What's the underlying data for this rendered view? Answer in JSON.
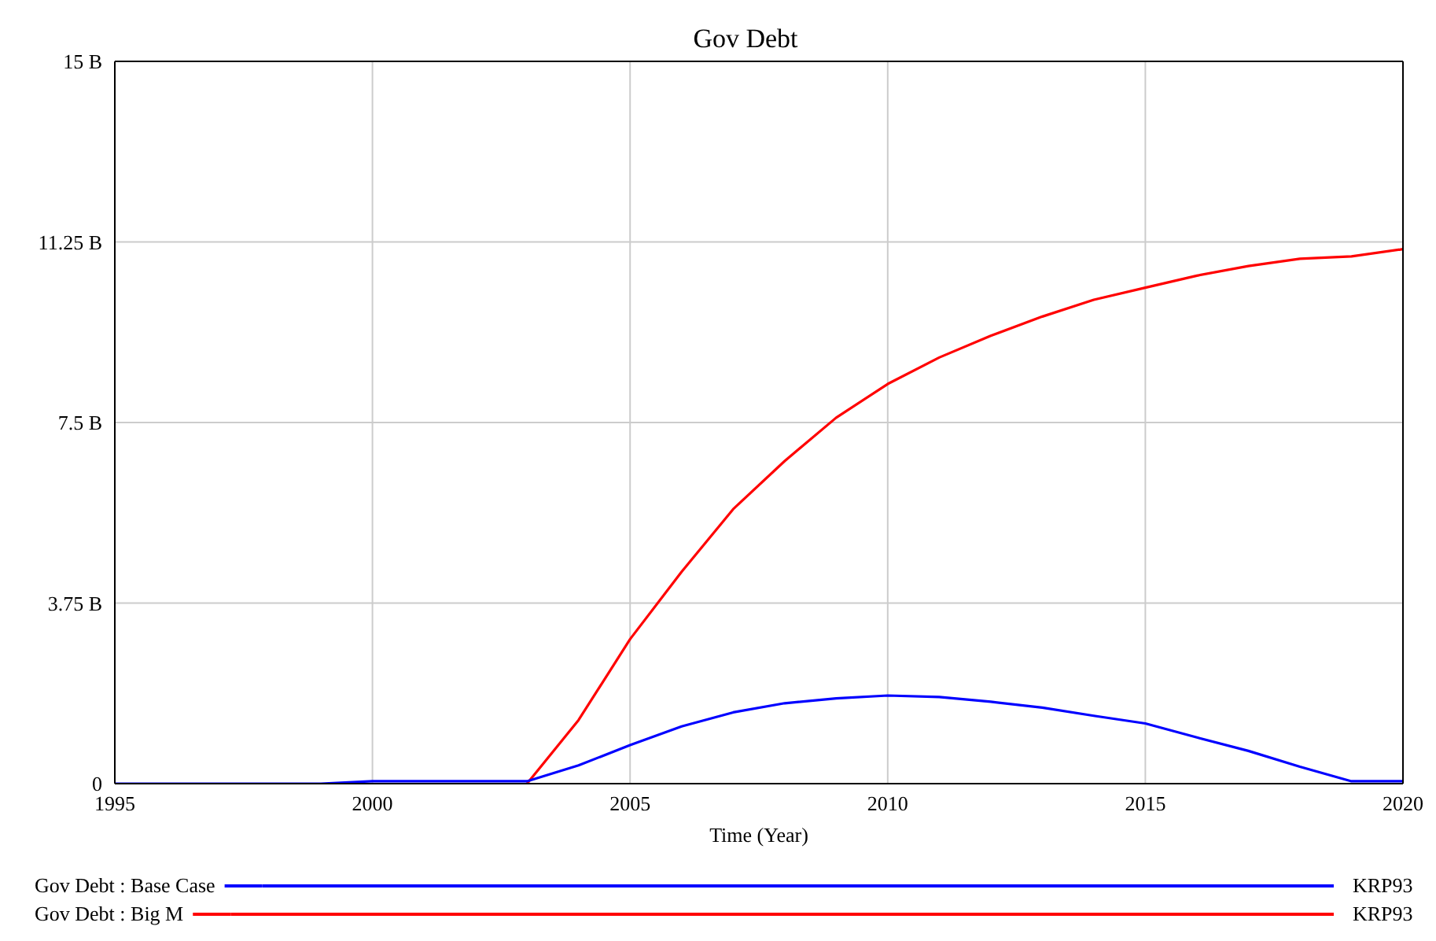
{
  "chart_data": {
    "type": "line",
    "title": "Gov Debt",
    "xlabel": "Time (Year)",
    "x": [
      1995,
      1996,
      1997,
      1998,
      1999,
      2000,
      2001,
      2002,
      2003,
      2004,
      2005,
      2006,
      2007,
      2008,
      2009,
      2010,
      2011,
      2012,
      2013,
      2014,
      2015,
      2016,
      2017,
      2018,
      2019,
      2020
    ],
    "series": [
      {
        "name": "Gov Debt : Base Case",
        "color": "#0000ff",
        "values": [
          0,
          0,
          0,
          0,
          0,
          0.05,
          0.05,
          0.05,
          0.05,
          0.38,
          0.8,
          1.19,
          1.48,
          1.67,
          1.77,
          1.83,
          1.8,
          1.7,
          1.58,
          1.41,
          1.25,
          0.96,
          0.68,
          0.35,
          0.05,
          0.05
        ]
      },
      {
        "name": "Gov Debt : Big M",
        "color": "#ff0000",
        "values": [
          null,
          null,
          null,
          null,
          null,
          null,
          null,
          null,
          0,
          1.32,
          3.0,
          4.4,
          5.7,
          6.7,
          7.6,
          8.3,
          8.85,
          9.3,
          9.7,
          10.05,
          10.3,
          10.55,
          10.75,
          10.9,
          10.95,
          11.1
        ]
      }
    ],
    "xlim": [
      1995,
      2020
    ],
    "xticks": [
      1995,
      2000,
      2005,
      2010,
      2015,
      2020
    ],
    "ylim": [
      0,
      15
    ],
    "yticks": [
      {
        "value": 0,
        "label": "0"
      },
      {
        "value": 3.75,
        "label": "3.75 B"
      },
      {
        "value": 7.5,
        "label": "7.5 B"
      },
      {
        "value": 11.25,
        "label": "11.25 B"
      },
      {
        "value": 15,
        "label": "15 B"
      }
    ],
    "grid": true,
    "legend": "bottom",
    "marker": "none",
    "line_style": "solid",
    "annotations": [
      "KRP93",
      "KRP93"
    ]
  }
}
